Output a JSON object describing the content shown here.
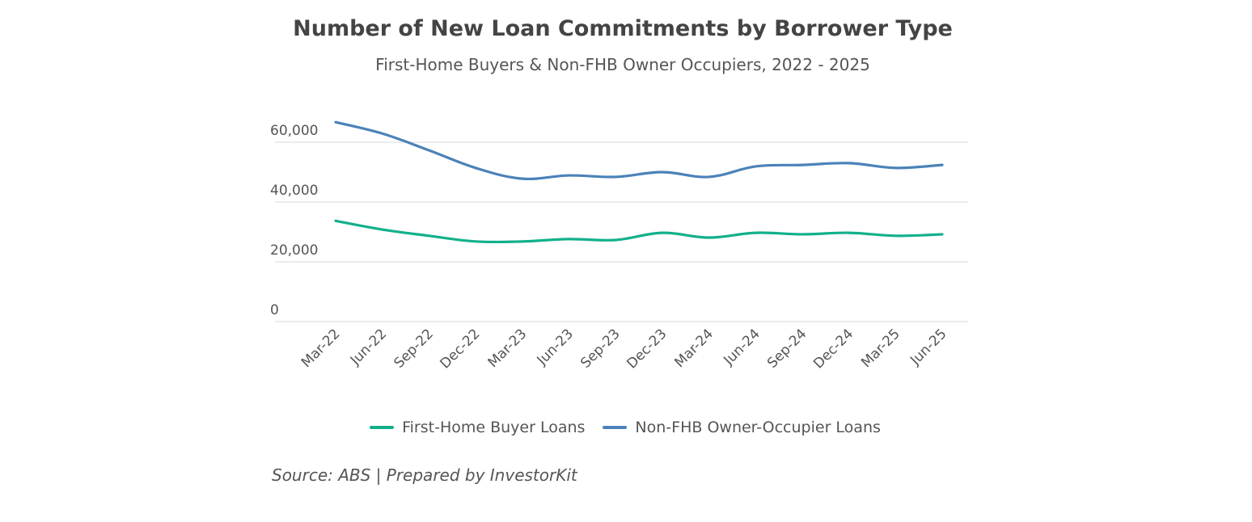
{
  "chart_data": {
    "type": "line",
    "title": "Number of New Loan Commitments by Borrower Type",
    "subtitle": "First-Home Buyers & Non-FHB Owner Occupiers, 2022 - 2025",
    "xlabel": "",
    "ylabel": "",
    "categories": [
      "Mar-22",
      "Jun-22",
      "Sep-22",
      "Dec-22",
      "Mar-23",
      "Jun-23",
      "Sep-23",
      "Dec-23",
      "Mar-24",
      "Jun-24",
      "Sep-24",
      "Dec-24",
      "Mar-25",
      "Jun-25"
    ],
    "ylim": [
      0,
      66000
    ],
    "yticks": [
      0,
      20000,
      40000,
      60000
    ],
    "ytick_labels": [
      "0",
      "20,000",
      "40,000",
      "60,000"
    ],
    "grid": true,
    "legend_position": "bottom",
    "series": [
      {
        "name": "First-Home Buyer Loans",
        "color": "#12b08a",
        "values": [
          33700,
          30800,
          28700,
          26800,
          26800,
          27600,
          27300,
          29700,
          28100,
          29700,
          29200,
          29700,
          28700,
          29200
        ]
      },
      {
        "name": "Non-FHB Owner-Occupier Loans",
        "color": "#4a82b8",
        "values": [
          66700,
          62900,
          57300,
          51400,
          47800,
          48900,
          48400,
          50000,
          48400,
          51900,
          52400,
          53000,
          51400,
          52400
        ]
      }
    ],
    "source": "Source: ABS | Prepared by InvestorKit"
  }
}
